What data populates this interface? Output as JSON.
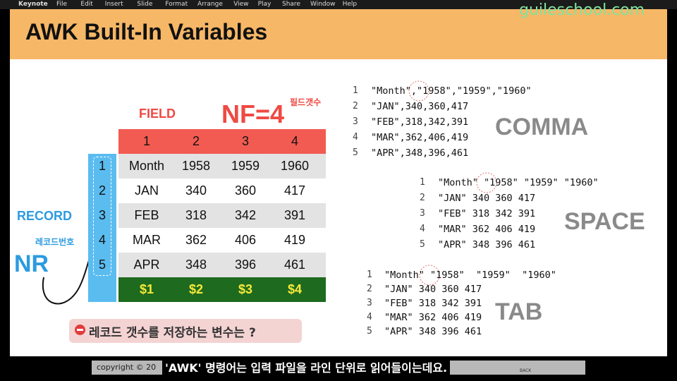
{
  "menu_bar": {
    "app": "Keynote",
    "items": [
      "File",
      "Edit",
      "Insert",
      "Slide",
      "Format",
      "Arrange",
      "View",
      "Play",
      "Share",
      "Window",
      "Help"
    ]
  },
  "brand": "guileschool.com",
  "slide": {
    "title": "AWK Built-In Variables",
    "field_label": "FIELD",
    "nf_label": "NF=4",
    "nf_note": "필드갯수",
    "record_label": "RECORD",
    "record_note": "레코드번호",
    "nr_label": "NR",
    "table": {
      "header": [
        "1",
        "2",
        "3",
        "4"
      ],
      "row_numbers": [
        "1",
        "2",
        "3",
        "4",
        "5"
      ],
      "rows": [
        [
          "Month",
          "1958",
          "1959",
          "1960"
        ],
        [
          "JAN",
          "340",
          "360",
          "417"
        ],
        [
          "FEB",
          "318",
          "342",
          "391"
        ],
        [
          "MAR",
          "362",
          "406",
          "419"
        ],
        [
          "APR",
          "348",
          "396",
          "461"
        ]
      ],
      "footer": [
        "$1",
        "$2",
        "$3",
        "$4"
      ]
    },
    "question": "레코드 갯수를 저장하는 변수는 ?",
    "listings": [
      {
        "label": "COMMA",
        "lines": [
          {
            "number": "1",
            "text": "\"Month\",\"1958\",\"1959\",\"1960\""
          },
          {
            "number": "2",
            "text": "\"JAN\",340,360,417"
          },
          {
            "number": "3",
            "text": "\"FEB\",318,342,391"
          },
          {
            "number": "4",
            "text": "\"MAR\",362,406,419"
          },
          {
            "number": "5",
            "text": "\"APR\",348,396,461"
          }
        ]
      },
      {
        "label": "SPACE",
        "lines": [
          {
            "number": "1",
            "text": "\"Month\" \"1958\" \"1959\" \"1960\""
          },
          {
            "number": "2",
            "text": "\"JAN\" 340 360 417"
          },
          {
            "number": "3",
            "text": "\"FEB\" 318 342 391"
          },
          {
            "number": "4",
            "text": "\"MAR\" 362 406 419"
          },
          {
            "number": "5",
            "text": "\"APR\" 348 396 461"
          }
        ]
      },
      {
        "label": "TAB",
        "lines": [
          {
            "number": "1",
            "text": "\"Month\" \"1958\"  \"1959\"  \"1960\""
          },
          {
            "number": "2",
            "text": "\"JAN\" 340 360 417"
          },
          {
            "number": "3",
            "text": "\"FEB\" 318 342 391"
          },
          {
            "number": "4",
            "text": "\"MAR\" 362 406 419"
          },
          {
            "number": "5",
            "text": "\"APR\" 348 396 461"
          }
        ]
      }
    ]
  },
  "footer": {
    "copyright": "copyright ©  20",
    "subtitle": "'AWK' 명령어는 입력 파일을 라인 단위로 읽어들이는데요.",
    "back": "BACK"
  }
}
